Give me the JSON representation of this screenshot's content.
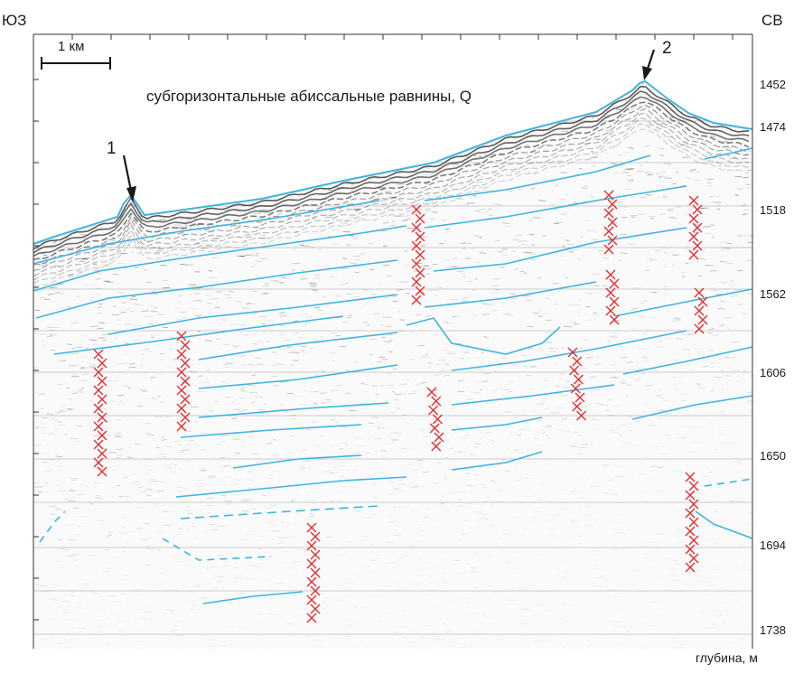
{
  "corner_left": "ЮЗ",
  "corner_right": "СВ",
  "scale_label": "1 км",
  "title": "субгоризонтальные абиссальные равнины,  Q",
  "markers": [
    {
      "label": "1"
    },
    {
      "label": "2"
    }
  ],
  "depth_ticks": [
    "1452",
    "1474",
    "1518",
    "1562",
    "1606",
    "1650",
    "1694",
    "1738"
  ],
  "depth_axis_label": "глубина, м",
  "colors": {
    "reflector": "#3fb4e0",
    "fault_marks": "#e03030",
    "gridline": "#bdbdbd",
    "seismic_dark": "#222222",
    "seismic_light": "#8a8a8a",
    "frame": "#333333"
  }
}
